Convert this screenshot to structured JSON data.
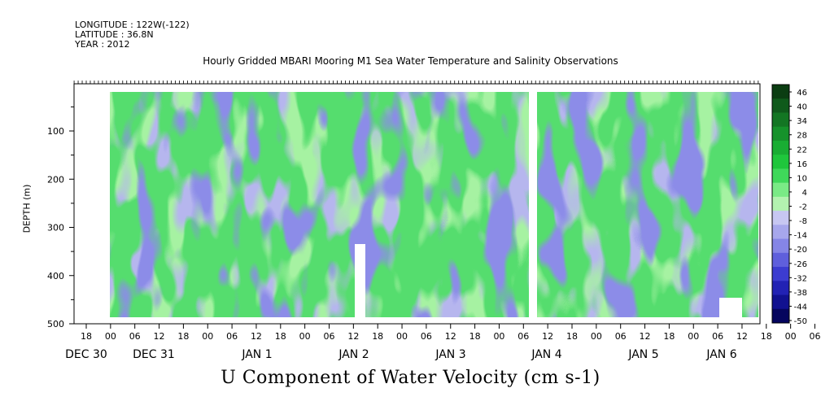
{
  "header": {
    "longitude": "LONGITUDE : 122W(-122)",
    "latitude": "LATITUDE : 36.8N",
    "year": "YEAR : 2012"
  },
  "chart_data": {
    "type": "heatmap",
    "title": "Hourly Gridded MBARI Mooring M1 Sea Water Temperature and Salinity Observations",
    "xlabel": "U Component of Water Velocity (cm s-1)",
    "ylabel": "DEPTH (m)",
    "ylim": [
      500,
      0
    ],
    "y_ticks": [
      100,
      200,
      300,
      400,
      500
    ],
    "x_hour_ticks": [
      "18",
      "00",
      "06",
      "12",
      "18",
      "00",
      "06",
      "12",
      "18",
      "00",
      "06",
      "12",
      "18",
      "00",
      "06",
      "12",
      "18",
      "00",
      "06",
      "12",
      "18",
      "00",
      "06",
      "12",
      "18",
      "00",
      "06",
      "12",
      "18",
      "00",
      "06",
      "12"
    ],
    "x_day_labels": [
      "DEC 30",
      "DEC 31",
      "JAN 1",
      "JAN 2",
      "JAN 3",
      "JAN 4",
      "JAN 5",
      "JAN 6"
    ],
    "data_time_range": [
      "DEC 31 00:00",
      "JAN 6 ~16:00"
    ],
    "data_depth_range": [
      20,
      485
    ],
    "gap": {
      "start": "JAN 4 ~06:00",
      "end": "JAN 4 ~11:00"
    },
    "colorbar": {
      "levels": [
        46,
        40,
        34,
        28,
        22,
        16,
        10,
        4,
        -2,
        -8,
        -14,
        -20,
        -26,
        -32,
        -38,
        -44,
        -50
      ],
      "colors": [
        "#0b3d12",
        "#0f5a1b",
        "#137623",
        "#16922b",
        "#19ad33",
        "#1fc63c",
        "#3fd85a",
        "#7aea86",
        "#b3f2b0",
        "#c7c7f2",
        "#a7a7ec",
        "#8585e6",
        "#5f5fdc",
        "#3c3cd0",
        "#2222b4",
        "#111190",
        "#05055e"
      ]
    },
    "field_note": "velocity field mostly within -14 to +16 cm/s, alternating light green and periwinkle bands"
  }
}
